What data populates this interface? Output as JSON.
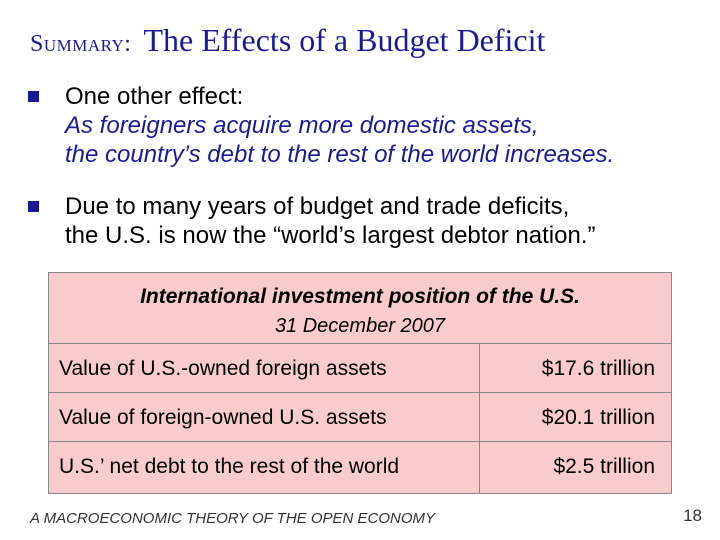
{
  "title": {
    "lead": "Summary:",
    "main": "The Effects of a Budget Deficit"
  },
  "bullets": [
    {
      "text": "One other effect:",
      "sub": [
        "As foreigners acquire more domestic assets,",
        "the country’s debt to the rest of the world increases."
      ]
    },
    {
      "lines": [
        "Due to many years of budget and trade deficits,",
        "the U.S. is now the “world’s largest debtor nation.”"
      ]
    }
  ],
  "table": {
    "heading": "International investment position of the U.S.",
    "subheading": "31 December 2007",
    "rows": [
      {
        "label": "Value of U.S.-owned foreign assets",
        "value": "$17.6 trillion"
      },
      {
        "label": "Value of foreign-owned U.S. assets",
        "value": "$20.1 trillion"
      },
      {
        "label": "U.S.’ net debt to the rest of the world",
        "value": "$2.5 trillion"
      }
    ]
  },
  "footer": "A MACROECONOMIC THEORY OF THE OPEN ECONOMY",
  "page_number": "18"
}
